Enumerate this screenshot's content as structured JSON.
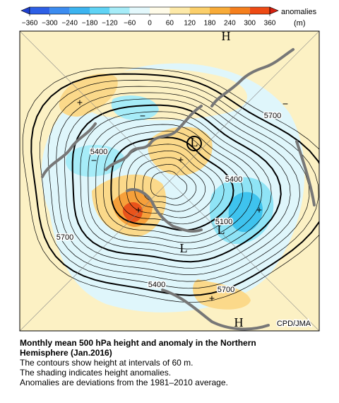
{
  "legend": {
    "title": "anomalies",
    "unit": "(m)",
    "ticks": [
      {
        "value": -360,
        "label": "−360"
      },
      {
        "value": -300,
        "label": "−300"
      },
      {
        "value": -240,
        "label": "−240"
      },
      {
        "value": -180,
        "label": "−180"
      },
      {
        "value": -120,
        "label": "−120"
      },
      {
        "value": -60,
        "label": "−60"
      },
      0,
      60,
      120,
      180,
      240,
      300,
      360
    ],
    "colors": [
      "#1e3fd0",
      "#2d5fe6",
      "#3c8cf0",
      "#3cb4f0",
      "#5fd3f5",
      "#a6ecf8",
      "#e3f8fc",
      "#fffbe8",
      "#fde9a8",
      "#fbcf6a",
      "#f8ab38",
      "#f57f1d",
      "#ee4a14",
      "#d6200e"
    ]
  },
  "map": {
    "labels": [
      "H",
      "H",
      "L",
      "L",
      "L",
      "5700",
      "5700",
      "5700",
      "5400",
      "5400",
      "5400",
      "5100",
      "+",
      "+",
      "+",
      "+",
      "+",
      "−",
      "−",
      "−",
      "CPD/JMA"
    ]
  },
  "caption": {
    "title": [
      "Monthly mean 500 hPa height and anomaly in the Northern",
      "Hemisphere (Jan.2016)"
    ],
    "notes": [
      "The contours show height at intervals of 60 m.",
      "The shading indicates height anomalies.",
      "Anomalies are deviations from the 1981–2010 average."
    ]
  }
}
